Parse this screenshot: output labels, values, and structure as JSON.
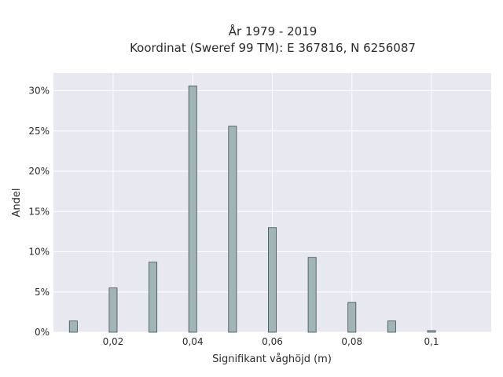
{
  "chart_data": {
    "type": "bar",
    "title_line1": "År 1979 - 2019",
    "title_line2": "Koordinat (Sweref 99 TM): E 367816, N 6256087",
    "xlabel": "Signifikant våghöjd (m)",
    "ylabel": "Andel",
    "xlim": [
      0.005,
      0.115
    ],
    "ylim": [
      0,
      32.2
    ],
    "x_ticks": [
      0.02,
      0.04,
      0.06,
      0.08,
      0.1
    ],
    "x_tick_labels": [
      "0,02",
      "0,04",
      "0,06",
      "0,08",
      "0,1"
    ],
    "y_ticks": [
      0,
      5,
      10,
      15,
      20,
      25,
      30
    ],
    "y_tick_labels": [
      "0%",
      "5%",
      "10%",
      "15%",
      "20%",
      "25%",
      "30%"
    ],
    "bar_width": 0.002,
    "x": [
      0.01,
      0.02,
      0.03,
      0.04,
      0.05,
      0.06,
      0.07,
      0.08,
      0.09,
      0.1
    ],
    "values": [
      1.4,
      5.5,
      8.7,
      30.6,
      25.6,
      13.0,
      9.3,
      3.7,
      1.4,
      0.2
    ],
    "grid": true,
    "bar_color": "#9fb5b6",
    "bar_edge_color": "#3f4f4f",
    "plot_background": "#e8e8f0"
  }
}
